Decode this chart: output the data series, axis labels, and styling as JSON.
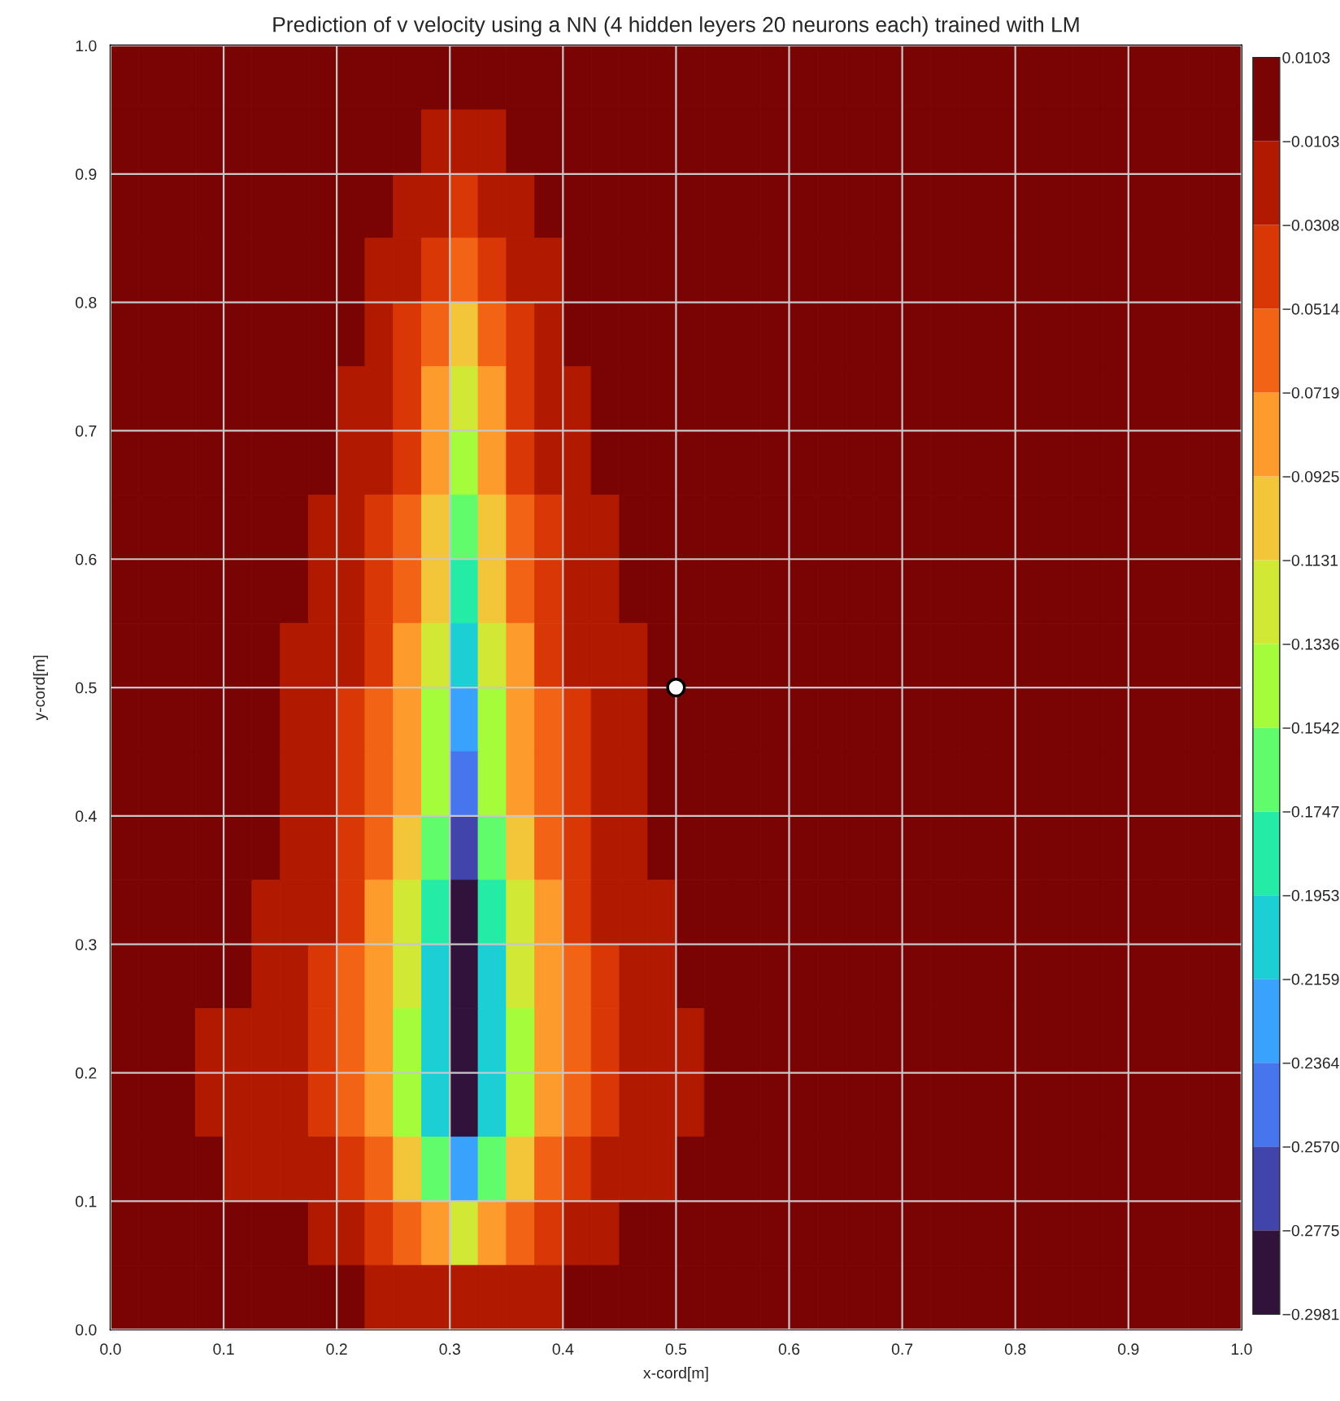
{
  "chart_data": {
    "type": "heatmap",
    "title": "Prediction of v velocity using a NN (4 hidden leyers 20 neurons each) trained with LM",
    "xlabel": "x-cord[m]",
    "ylabel": "y-cord[m]",
    "xlim": [
      0,
      1
    ],
    "ylim": [
      0,
      1
    ],
    "xticks": [
      {
        "value": 0,
        "label": "0.0"
      },
      0.1,
      0.2,
      0.3,
      0.4,
      0.5,
      0.6,
      0.7,
      0.8,
      0.9,
      {
        "value": 1,
        "label": "1.0"
      }
    ],
    "yticks": [
      {
        "value": 0,
        "label": "0.0"
      },
      0.1,
      0.2,
      0.3,
      0.4,
      0.5,
      0.6,
      0.7,
      0.8,
      0.9,
      {
        "value": 1,
        "label": "1.0"
      }
    ],
    "grid": true,
    "clim": [
      -0.2981,
      0.0103
    ],
    "cticks": [
      {
        "value": -0.2981,
        "label": "−0.2981"
      },
      {
        "value": -0.2775,
        "label": "−0.2775"
      },
      {
        "value": -0.257,
        "label": "−0.2570"
      },
      {
        "value": -0.2364,
        "label": "−0.2364"
      },
      {
        "value": -0.2159,
        "label": "−0.2159"
      },
      {
        "value": -0.1953,
        "label": "−0.1953"
      },
      {
        "value": -0.1747,
        "label": "−0.1747"
      },
      {
        "value": -0.1542,
        "label": "−0.1542"
      },
      {
        "value": -0.1336,
        "label": "−0.1336"
      },
      {
        "value": -0.1131,
        "label": "−0.1131"
      },
      {
        "value": -0.0925,
        "label": "−0.0925"
      },
      {
        "value": -0.0719,
        "label": "−0.0719"
      },
      {
        "value": -0.0514,
        "label": "−0.0514"
      },
      {
        "value": -0.0308,
        "label": "−0.0308"
      },
      {
        "value": -0.0103,
        "label": "−0.0103"
      },
      {
        "value": 0.0103,
        "label": "0.0103"
      }
    ],
    "colors": [
      "#30123b",
      "#4145ab",
      "#4675ed",
      "#39a2fc",
      "#1bcfd4",
      "#24eca6",
      "#61fc6c",
      "#a4fc3b",
      "#d1e834",
      "#f3c63a",
      "#fe9b2d",
      "#f36315",
      "#d93806",
      "#b11901",
      "#7a0403"
    ],
    "x": [
      0.0125,
      0.0375,
      0.0625,
      0.0875,
      0.1125,
      0.1375,
      0.1625,
      0.1875,
      0.2125,
      0.2375,
      0.2625,
      0.2875,
      0.3125,
      0.3375,
      0.3625,
      0.3875,
      0.4125,
      0.4375,
      0.4625,
      0.4875,
      0.5125,
      0.5375,
      0.5625,
      0.5875,
      0.6125,
      0.6375,
      0.6625,
      0.6875,
      0.7125,
      0.7375,
      0.7625,
      0.7875,
      0.8125,
      0.8375,
      0.8625,
      0.8875,
      0.9125,
      0.9375,
      0.9625,
      0.9875
    ],
    "y": [
      0.975,
      0.925,
      0.875,
      0.825,
      0.775,
      0.725,
      0.675,
      0.625,
      0.575,
      0.525,
      0.475,
      0.425,
      0.375,
      0.325,
      0.275,
      0.225,
      0.175,
      0.125,
      0.075,
      0.025
    ],
    "cells": [
      [
        0,
        0,
        0,
        0,
        0,
        0,
        0,
        0,
        0,
        0,
        0,
        0,
        0,
        0,
        0,
        0,
        0,
        0,
        0,
        0,
        0,
        0,
        0,
        0,
        0,
        0,
        0,
        0,
        0,
        0,
        0,
        0,
        0,
        0,
        0,
        0,
        0,
        0,
        0,
        0
      ],
      [
        0,
        0,
        0,
        0,
        0,
        0,
        0,
        0,
        0,
        0,
        0,
        -0.021,
        -0.021,
        -0.021,
        0,
        0,
        0,
        0,
        0,
        0,
        0,
        0,
        0,
        0,
        0,
        0,
        0,
        0,
        0,
        0,
        0,
        0,
        0,
        0,
        0,
        0,
        0,
        0,
        0,
        0
      ],
      [
        0,
        0,
        0,
        0,
        0,
        0,
        0,
        0,
        0,
        0,
        -0.021,
        -0.021,
        -0.041,
        -0.021,
        -0.021,
        0,
        0,
        0,
        0,
        0,
        0,
        0,
        0,
        0,
        0,
        0,
        0,
        0,
        0,
        0,
        0,
        0,
        0,
        0,
        0,
        0,
        0,
        0,
        0,
        0
      ],
      [
        0,
        0,
        0,
        0,
        0,
        0,
        0,
        0,
        0,
        -0.021,
        -0.021,
        -0.041,
        -0.062,
        -0.041,
        -0.021,
        -0.021,
        0,
        0,
        0,
        0,
        0,
        0,
        0,
        0,
        0,
        0,
        0,
        0,
        0,
        0,
        0,
        0,
        0,
        0,
        0,
        0,
        0,
        0,
        0,
        0
      ],
      [
        0,
        0,
        0,
        0,
        0,
        0,
        0,
        0,
        0,
        -0.021,
        -0.041,
        -0.062,
        -0.103,
        -0.062,
        -0.041,
        -0.021,
        0,
        0,
        0,
        0,
        0,
        0,
        0,
        0,
        0,
        0,
        0,
        0,
        0,
        0,
        0,
        0,
        0,
        0,
        0,
        0,
        0,
        0,
        0,
        0
      ],
      [
        0,
        0,
        0,
        0,
        0,
        0,
        0,
        0,
        -0.021,
        -0.021,
        -0.041,
        -0.082,
        -0.123,
        -0.082,
        -0.041,
        -0.021,
        -0.021,
        0,
        0,
        0,
        0,
        0,
        0,
        0,
        0,
        0,
        0,
        0,
        0,
        0,
        0,
        0,
        0,
        0,
        0,
        0,
        0,
        0,
        0,
        0
      ],
      [
        0,
        0,
        0,
        0,
        0,
        0,
        0,
        0,
        -0.021,
        -0.021,
        -0.041,
        -0.082,
        -0.144,
        -0.082,
        -0.041,
        -0.021,
        -0.021,
        0,
        0,
        0,
        0,
        0,
        0,
        0,
        0,
        0,
        0,
        0,
        0,
        0,
        0,
        0,
        0,
        0,
        0,
        0,
        0,
        0,
        0,
        0
      ],
      [
        0,
        0,
        0,
        0,
        0,
        0,
        0,
        -0.021,
        -0.021,
        -0.041,
        -0.062,
        -0.103,
        -0.164,
        -0.103,
        -0.062,
        -0.041,
        -0.021,
        -0.021,
        0,
        0,
        0,
        0,
        0,
        0,
        0,
        0,
        0,
        0,
        0,
        0,
        0,
        0,
        0,
        0,
        0,
        0,
        0,
        0,
        0,
        0
      ],
      [
        0,
        0,
        0,
        0,
        0,
        0,
        0,
        -0.021,
        -0.021,
        -0.041,
        -0.062,
        -0.103,
        -0.185,
        -0.103,
        -0.062,
        -0.041,
        -0.021,
        -0.021,
        0,
        0,
        0,
        0,
        0,
        0,
        0,
        0,
        0,
        0,
        0,
        0,
        0,
        0,
        0,
        0,
        0,
        0,
        0,
        0,
        0,
        0
      ],
      [
        0,
        0,
        0,
        0,
        0,
        0,
        -0.021,
        -0.021,
        -0.021,
        -0.041,
        -0.082,
        -0.123,
        -0.205,
        -0.123,
        -0.082,
        -0.041,
        -0.021,
        -0.021,
        -0.021,
        0,
        0,
        0,
        0,
        0,
        0,
        0,
        0,
        0,
        0,
        0,
        0,
        0,
        0,
        0,
        0,
        0,
        0,
        0,
        0,
        0
      ],
      [
        0,
        0,
        0,
        0,
        0,
        0,
        -0.021,
        -0.021,
        -0.041,
        -0.062,
        -0.082,
        -0.144,
        -0.226,
        -0.144,
        -0.082,
        -0.062,
        -0.041,
        -0.021,
        -0.021,
        0,
        0,
        0,
        0,
        0,
        0,
        0,
        0,
        0,
        0,
        0,
        0,
        0,
        0,
        0,
        0,
        0,
        0,
        0,
        0,
        0
      ],
      [
        0,
        0,
        0,
        0,
        0,
        0,
        -0.021,
        -0.021,
        -0.041,
        -0.062,
        -0.082,
        -0.144,
        -0.246,
        -0.144,
        -0.082,
        -0.062,
        -0.041,
        -0.021,
        -0.021,
        0,
        0,
        0,
        0,
        0,
        0,
        0,
        0,
        0,
        0,
        0,
        0,
        0,
        0,
        0,
        0,
        0,
        0,
        0,
        0,
        0
      ],
      [
        0,
        0,
        0,
        0,
        0,
        0,
        -0.021,
        -0.021,
        -0.041,
        -0.062,
        -0.103,
        -0.164,
        -0.267,
        -0.164,
        -0.103,
        -0.062,
        -0.041,
        -0.021,
        -0.021,
        0,
        0,
        0,
        0,
        0,
        0,
        0,
        0,
        0,
        0,
        0,
        0,
        0,
        0,
        0,
        0,
        0,
        0,
        0,
        0,
        0
      ],
      [
        0,
        0,
        0,
        0,
        0,
        -0.021,
        -0.021,
        -0.021,
        -0.041,
        -0.082,
        -0.123,
        -0.185,
        -0.288,
        -0.185,
        -0.123,
        -0.082,
        -0.041,
        -0.021,
        -0.021,
        -0.021,
        0,
        0,
        0,
        0,
        0,
        0,
        0,
        0,
        0,
        0,
        0,
        0,
        0,
        0,
        0,
        0,
        0,
        0,
        0,
        0
      ],
      [
        0,
        0,
        0,
        0,
        0,
        -0.021,
        -0.021,
        -0.041,
        -0.062,
        -0.082,
        -0.123,
        -0.205,
        -0.288,
        -0.205,
        -0.123,
        -0.082,
        -0.062,
        -0.041,
        -0.021,
        -0.021,
        0,
        0,
        0,
        0,
        0,
        0,
        0,
        0,
        0,
        0,
        0,
        0,
        0,
        0,
        0,
        0,
        0,
        0,
        0,
        0
      ],
      [
        0,
        0,
        0,
        -0.021,
        -0.021,
        -0.021,
        -0.021,
        -0.041,
        -0.062,
        -0.082,
        -0.144,
        -0.205,
        -0.288,
        -0.205,
        -0.144,
        -0.082,
        -0.062,
        -0.041,
        -0.021,
        -0.021,
        -0.021,
        0,
        0,
        0,
        0,
        0,
        0,
        0,
        0,
        0,
        0,
        0,
        0,
        0,
        0,
        0,
        0,
        0,
        0,
        0
      ],
      [
        0,
        0,
        0,
        -0.021,
        -0.021,
        -0.021,
        -0.021,
        -0.041,
        -0.062,
        -0.082,
        -0.144,
        -0.205,
        -0.288,
        -0.205,
        -0.144,
        -0.082,
        -0.062,
        -0.041,
        -0.021,
        -0.021,
        -0.021,
        0,
        0,
        0,
        0,
        0,
        0,
        0,
        0,
        0,
        0,
        0,
        0,
        0,
        0,
        0,
        0,
        0,
        0,
        0
      ],
      [
        0,
        0,
        0,
        0,
        -0.021,
        -0.021,
        -0.021,
        -0.021,
        -0.041,
        -0.062,
        -0.103,
        -0.164,
        -0.226,
        -0.164,
        -0.103,
        -0.062,
        -0.041,
        -0.021,
        -0.021,
        -0.021,
        0,
        0,
        0,
        0,
        0,
        0,
        0,
        0,
        0,
        0,
        0,
        0,
        0,
        0,
        0,
        0,
        0,
        0,
        0,
        0
      ],
      [
        0,
        0,
        0,
        0,
        0,
        0,
        0,
        -0.021,
        -0.021,
        -0.041,
        -0.062,
        -0.082,
        -0.123,
        -0.082,
        -0.062,
        -0.041,
        -0.021,
        -0.021,
        0,
        0,
        0,
        0,
        0,
        0,
        0,
        0,
        0,
        0,
        0,
        0,
        0,
        0,
        0,
        0,
        0,
        0,
        0,
        0,
        0,
        0
      ],
      [
        0,
        0,
        0,
        0,
        0,
        0,
        0,
        0,
        0,
        -0.021,
        -0.021,
        -0.021,
        -0.021,
        -0.021,
        -0.021,
        -0.021,
        0,
        0,
        0,
        0,
        0,
        0,
        0,
        0,
        0,
        0,
        0,
        0,
        0,
        0,
        0,
        0,
        0,
        0,
        0,
        0,
        0,
        0,
        0,
        0
      ]
    ],
    "series": [
      {
        "type": "scatter",
        "x": [
          0.5
        ],
        "values": [
          0.5
        ],
        "color": "#ffffff"
      }
    ],
    "marker": "circle"
  }
}
